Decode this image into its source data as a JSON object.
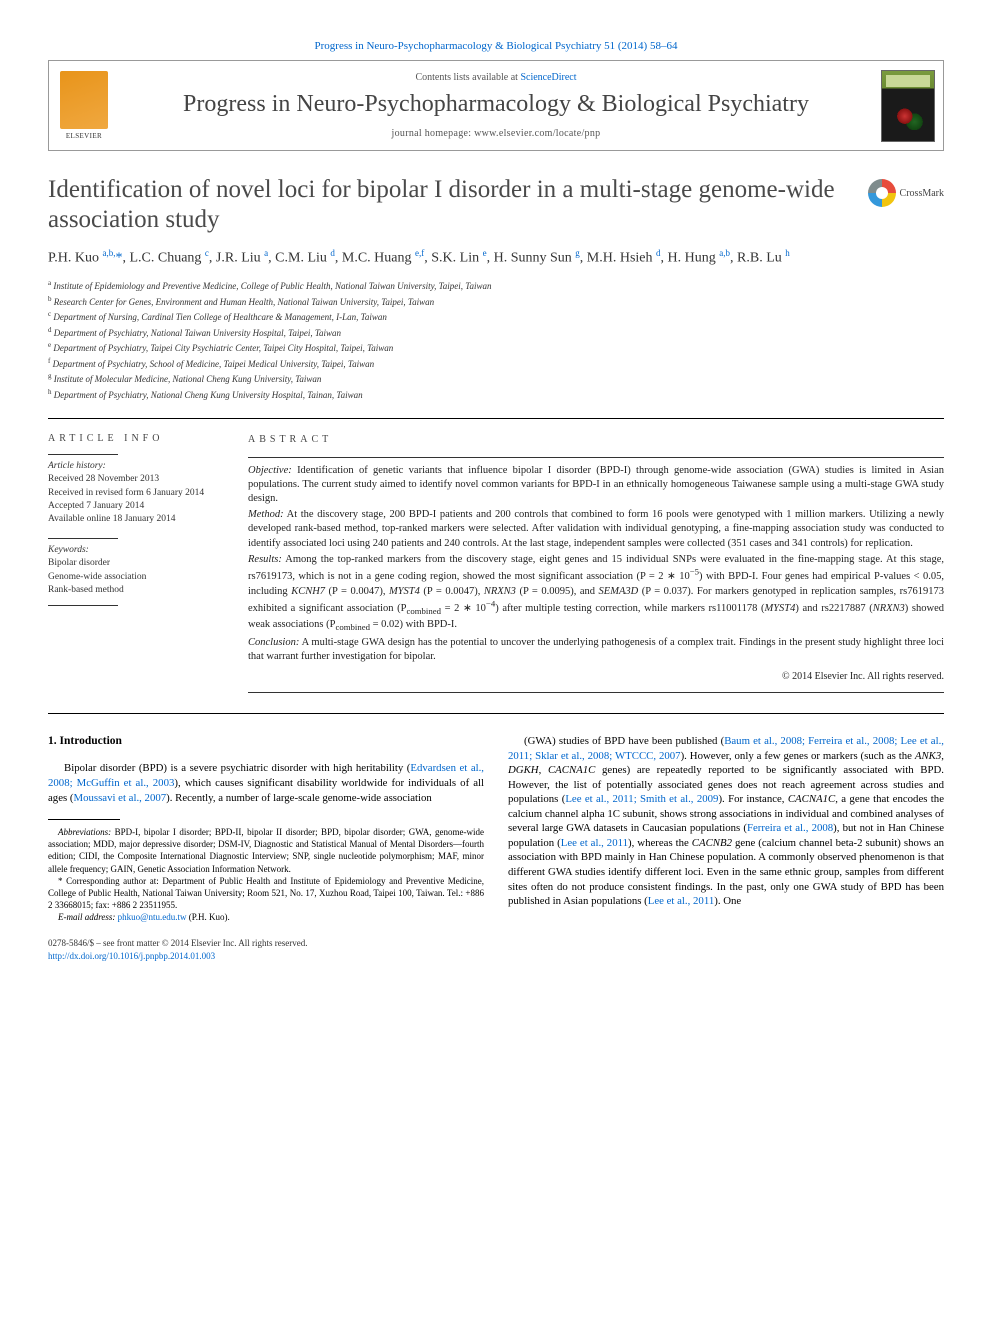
{
  "topLink": "Progress in Neuro-Psychopharmacology & Biological Psychiatry 51 (2014) 58–64",
  "header": {
    "contentsPrefix": "Contents lists available at ",
    "contentsLink": "ScienceDirect",
    "journal": "Progress in Neuro-Psychopharmacology & Biological\nPsychiatry",
    "homepagePrefix": "journal homepage: ",
    "homepage": "www.elsevier.com/locate/pnp",
    "publisher": "ELSEVIER"
  },
  "crossmark": "CrossMark",
  "title": "Identification of novel loci for bipolar I disorder in a multi-stage genome-wide association study",
  "authors_html": "P.H. Kuo <span class='sup'>a,b,</span><span class='star'>*</span>, L.C. Chuang <span class='sup'>c</span>, J.R. Liu <span class='sup'>a</span>, C.M. Liu <span class='sup'>d</span>, M.C. Huang <span class='sup'>e,f</span>, S.K. Lin <span class='sup'>e</span>, H. Sunny Sun <span class='sup'>g</span>, M.H. Hsieh <span class='sup'>d</span>, H. Hung <span class='sup'>a,b</span>, R.B. Lu <span class='sup'>h</span>",
  "affiliations": [
    {
      "k": "a",
      "t": "Institute of Epidemiology and Preventive Medicine, College of Public Health, National Taiwan University, Taipei, Taiwan"
    },
    {
      "k": "b",
      "t": "Research Center for Genes, Environment and Human Health, National Taiwan University, Taipei, Taiwan"
    },
    {
      "k": "c",
      "t": "Department of Nursing, Cardinal Tien College of Healthcare & Management, I-Lan, Taiwan"
    },
    {
      "k": "d",
      "t": "Department of Psychiatry, National Taiwan University Hospital, Taipei, Taiwan"
    },
    {
      "k": "e",
      "t": "Department of Psychiatry, Taipei City Psychiatric Center, Taipei City Hospital, Taipei, Taiwan"
    },
    {
      "k": "f",
      "t": "Department of Psychiatry, School of Medicine, Taipei Medical University, Taipei, Taiwan"
    },
    {
      "k": "g",
      "t": "Institute of Molecular Medicine, National Cheng Kung University, Taiwan"
    },
    {
      "k": "h",
      "t": "Department of Psychiatry, National Cheng Kung University Hospital, Tainan, Taiwan"
    }
  ],
  "info": {
    "heading": "article info",
    "historyHead": "Article history:",
    "history": [
      "Received 28 November 2013",
      "Received in revised form 6 January 2014",
      "Accepted 7 January 2014",
      "Available online 18 January 2014"
    ],
    "keywordsHead": "Keywords:",
    "keywords": [
      "Bipolar disorder",
      "Genome-wide association",
      "Rank-based method"
    ]
  },
  "abstract": {
    "heading": "abstract",
    "objective_label": "Objective:",
    "objective": "Identification of genetic variants that influence bipolar I disorder (BPD-I) through genome-wide association (GWA) studies is limited in Asian populations. The current study aimed to identify novel common variants for BPD-I in an ethnically homogeneous Taiwanese sample using a multi-stage GWA study design.",
    "method_label": "Method:",
    "method": "At the discovery stage, 200 BPD-I patients and 200 controls that combined to form 16 pools were genotyped with 1 million markers. Utilizing a newly developed rank-based method, top-ranked markers were selected. After validation with individual genotyping, a fine-mapping association study was conducted to identify associated loci using 240 patients and 240 controls. At the last stage, independent samples were collected (351 cases and 341 controls) for replication.",
    "results_label": "Results:",
    "results_html": "Among the top-ranked markers from the discovery stage, eight genes and 15 individual SNPs were evaluated in the fine-mapping stage. At this stage, rs7619173, which is not in a gene coding region, showed the most significant association (P = 2 ∗ 10<sup>−5</sup>) with BPD-I. Four genes had empirical P-values &lt; 0.05, including <em>KCNH7</em> (P = 0.0047), <em>MYST4</em> (P = 0.0047), <em>NRXN3</em> (P = 0.0095), and <em>SEMA3D</em> (P = 0.037). For markers genotyped in replication samples, rs7619173 exhibited a significant association (P<sub>combined</sub> = 2 ∗ 10<sup>−4</sup>) after multiple testing correction, while markers rs11001178 (<em>MYST4</em>) and rs2217887 (<em>NRXN3</em>) showed weak associations (P<sub>combined</sub> = 0.02) with BPD-I.",
    "conclusion_label": "Conclusion:",
    "conclusion": "A multi-stage GWA design has the potential to uncover the underlying pathogenesis of a complex trait. Findings in the present study highlight three loci that warrant further investigation for bipolar.",
    "copyright": "© 2014 Elsevier Inc. All rights reserved."
  },
  "intro": {
    "heading": "1. Introduction",
    "p1_html": "Bipolar disorder (BPD) is a severe psychiatric disorder with high heritability (<a href='#'>Edvardsen et al., 2008; McGuffin et al., 2003</a>), which causes significant disability worldwide for individuals of all ages (<a href='#'>Moussavi et al., 2007</a>). Recently, a number of large-scale genome-wide association",
    "p2_html": "(GWA) studies of BPD have been published (<a href='#'>Baum et al., 2008; Ferreira et al., 2008; Lee et al., 2011; Sklar et al., 2008; WTCCC, 2007</a>). However, only a few genes or markers (such as the <em>ANK3</em>, <em>DGKH</em>, <em>CACNA1C</em> genes) are repeatedly reported to be significantly associated with BPD. However, the list of potentially associated genes does not reach agreement across studies and populations (<a href='#'>Lee et al., 2011; Smith et al., 2009</a>). For instance, <em>CACNA1C</em>, a gene that encodes the calcium channel alpha 1C subunit, shows strong associations in individual and combined analyses of several large GWA datasets in Caucasian populations (<a href='#'>Ferreira et al., 2008</a>), but not in Han Chinese population (<a href='#'>Lee et al., 2011</a>), whereas the <em>CACNB2</em> gene (calcium channel beta-2 subunit) shows an association with BPD mainly in Han Chinese population. A commonly observed phenomenon is that different GWA studies identify different loci. Even in the same ethnic group, samples from different sites often do not produce consistent findings. In the past, only one GWA study of BPD has been published in Asian populations (<a href='#'>Lee et al., 2011</a>). One"
  },
  "footnotes": {
    "abbrev_label": "Abbreviations:",
    "abbrev": "BPD-I, bipolar I disorder; BPD-II, bipolar II disorder; BPD, bipolar disorder; GWA, genome-wide association; MDD, major depressive disorder; DSM-IV, Diagnostic and Statistical Manual of Mental Disorders—fourth edition; CIDI, the Composite International Diagnostic Interview; SNP, single nucleotide polymorphism; MAF, minor allele frequency; GAIN, Genetic Association Information Network.",
    "corr_label": "* Corresponding author at:",
    "corr": "Department of Public Health and Institute of Epidemiology and Preventive Medicine, College of Public Health, National Taiwan University; Room 521, No. 17, Xuzhou Road, Taipei 100, Taiwan. Tel.: +886 2 33668015; fax: +886 2 23511955.",
    "email_label": "E-mail address:",
    "email": "phkuo@ntu.edu.tw",
    "email_suffix": "(P.H. Kuo)."
  },
  "footer": {
    "line1": "0278-5846/$ – see front matter © 2014 Elsevier Inc. All rights reserved.",
    "doi": "http://dx.doi.org/10.1016/j.pnpbp.2014.01.003"
  },
  "colors": {
    "link": "#0066cc",
    "text": "#000000",
    "heading": "#4a4a4a",
    "elsevier": "#e8941a"
  }
}
